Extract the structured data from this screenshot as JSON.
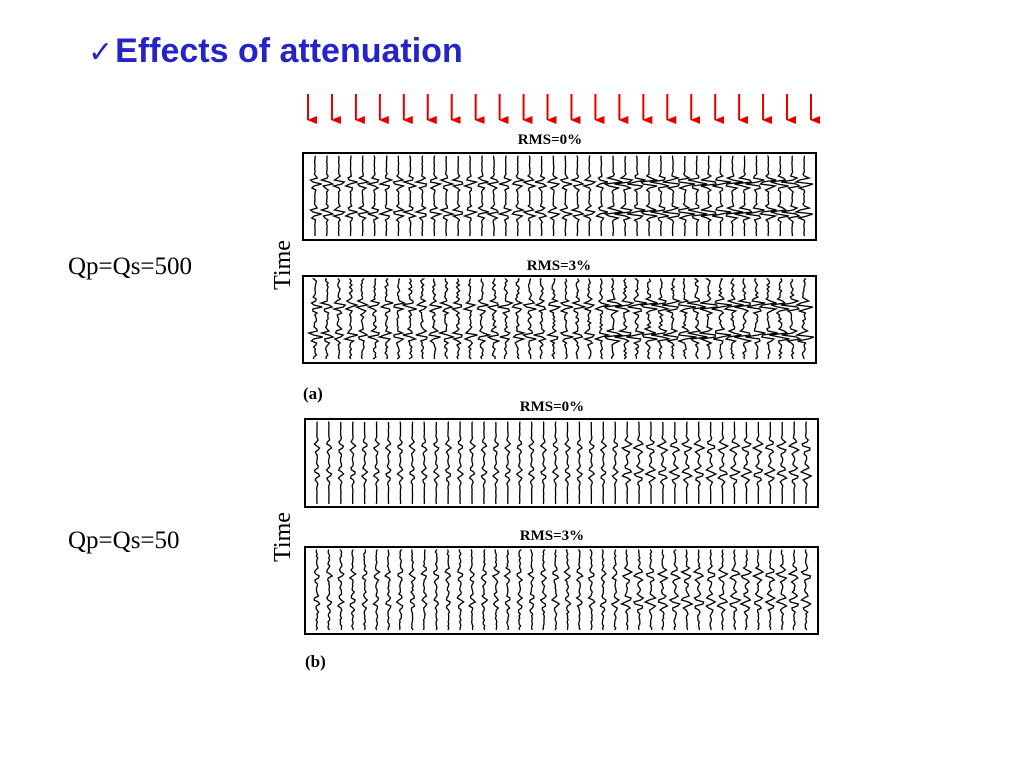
{
  "slide": {
    "check_symbol": "✓",
    "title": "Effects of attenuation"
  },
  "labels": {
    "q_top": "Qp=Qs=500",
    "q_bottom": "Qp=Qs=50"
  },
  "figure": {
    "arrow_color": "#e00000",
    "arrow_count": 22,
    "time_label": "Time",
    "panel_a": {
      "caption": "(a)",
      "top_title": "RMS=0%",
      "bottom_title": "RMS=3%"
    },
    "panel_b": {
      "caption": "(b)",
      "top_title": "RMS=0%",
      "bottom_title": "RMS=3%"
    }
  }
}
